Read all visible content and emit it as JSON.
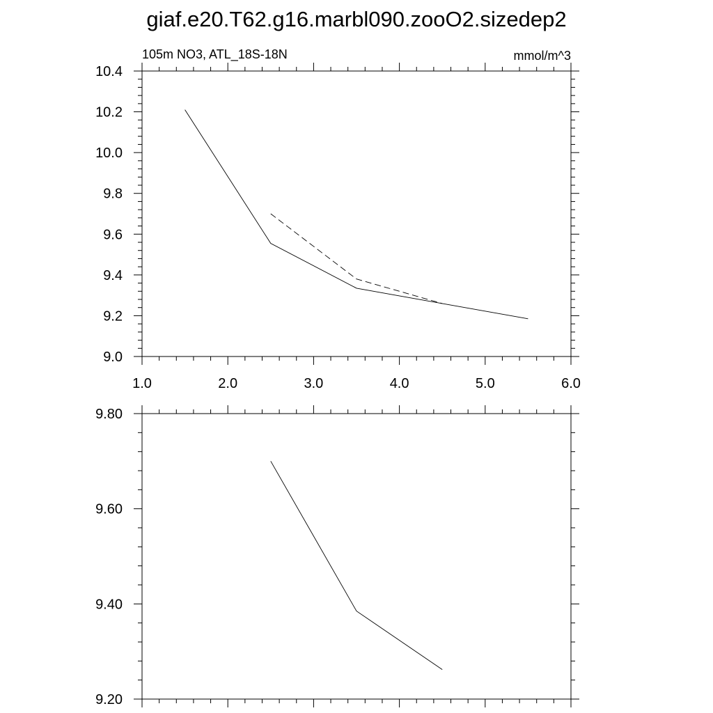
{
  "page_title": "giaf.e20.T62.g16.marbl090.zooO2.sizedep2",
  "chart_data": [
    {
      "type": "line",
      "left_title": "105m NO3, ATL_18S-18N",
      "right_title": "mmol/m^3",
      "xlim": [
        1.0,
        6.0
      ],
      "ylim": [
        9.0,
        10.4
      ],
      "x_ticks": [
        "1.0",
        "2.0",
        "3.0",
        "4.0",
        "5.0",
        "6.0"
      ],
      "y_ticks": [
        "9.0",
        "9.2",
        "9.4",
        "9.6",
        "9.8",
        "10.0",
        "10.2",
        "10.4"
      ],
      "grid": false,
      "series": [
        {
          "style": "solid",
          "x": [
            1.5,
            2.5,
            3.5,
            4.5,
            5.5
          ],
          "y": [
            10.21,
            9.555,
            9.335,
            9.26,
            9.185
          ]
        },
        {
          "style": "dashed",
          "x": [
            2.5,
            3.5,
            4.5
          ],
          "y": [
            9.7,
            9.38,
            9.26
          ]
        }
      ]
    },
    {
      "type": "line",
      "xlim": [
        1.0,
        6.0
      ],
      "ylim": [
        9.2,
        9.8
      ],
      "y_ticks": [
        "9.20",
        "9.40",
        "9.60",
        "9.80"
      ],
      "grid": false,
      "series": [
        {
          "style": "solid",
          "x": [
            2.5,
            3.5,
            4.5
          ],
          "y": [
            9.7,
            9.385,
            9.262
          ]
        }
      ]
    }
  ]
}
